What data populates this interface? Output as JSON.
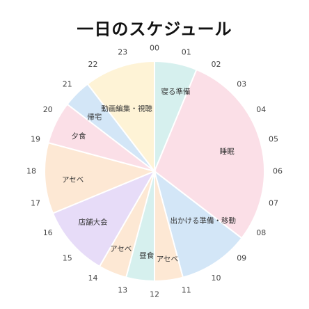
{
  "title": "一日のスケジュール",
  "chart_data": {
    "type": "pie",
    "title": "一日のスケジュール",
    "unit": "hour",
    "hour_labels": [
      "00",
      "01",
      "02",
      "03",
      "04",
      "05",
      "06",
      "07",
      "08",
      "09",
      "10",
      "11",
      "12",
      "13",
      "14",
      "15",
      "16",
      "17",
      "18",
      "19",
      "20",
      "21",
      "22",
      "23"
    ],
    "segments": [
      {
        "label": "寝る準備",
        "start": 0.0,
        "end": 1.5,
        "color": "#d6f0ee"
      },
      {
        "label": "睡眠",
        "start": 1.5,
        "end": 8.5,
        "color": "#fbdfe7"
      },
      {
        "label": "出かける準備・移動",
        "start": 8.5,
        "end": 11.0,
        "color": "#d3e6f7"
      },
      {
        "label": "アセベ",
        "start": 11.0,
        "end": 12.0,
        "color": "#fde8d4"
      },
      {
        "label": "昼食",
        "start": 12.0,
        "end": 13.0,
        "color": "#d6f0ee"
      },
      {
        "label": "アセベ",
        "start": 13.0,
        "end": 14.0,
        "color": "#fde8d4"
      },
      {
        "label": "店舗大会",
        "start": 14.0,
        "end": 16.5,
        "color": "#e7dcf8"
      },
      {
        "label": "アセベ",
        "start": 16.5,
        "end": 19.0,
        "color": "#fde8d4"
      },
      {
        "label": "夕食",
        "start": 19.0,
        "end": 20.5,
        "color": "#fbdfe7"
      },
      {
        "label": "帰宅",
        "start": 20.5,
        "end": 21.5,
        "color": "#d3e6f7"
      },
      {
        "label": "動画編集・視聴",
        "start": 21.5,
        "end": 24.0,
        "color": "#fef3d6"
      }
    ]
  }
}
